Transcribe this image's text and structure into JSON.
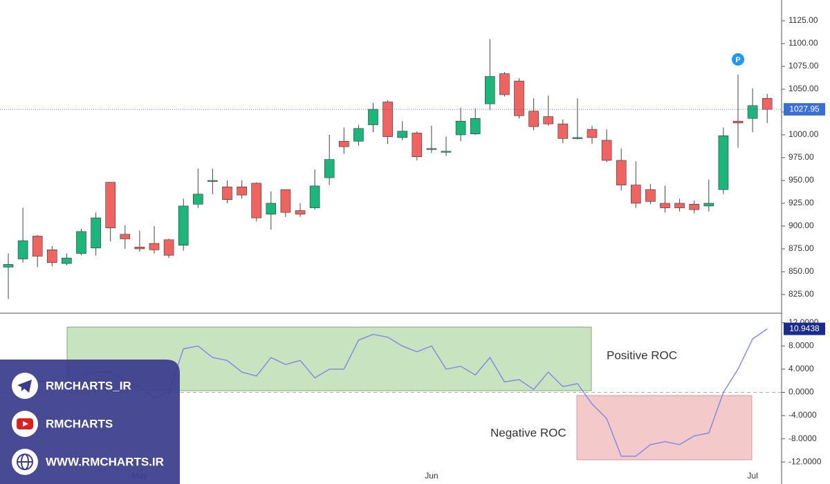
{
  "chart_data": [
    {
      "type": "candlestick",
      "categories": [
        null,
        null,
        null,
        null,
        null,
        null,
        null,
        null,
        null,
        "May",
        null,
        null,
        null,
        null,
        null,
        null,
        null,
        null,
        null,
        null,
        null,
        null,
        null,
        null,
        null,
        null,
        null,
        null,
        null,
        "Jun",
        null,
        null,
        null,
        null,
        null,
        null,
        null,
        null,
        null,
        null,
        null,
        null,
        null,
        null,
        null,
        null,
        null,
        null,
        null,
        null,
        null,
        "Jul",
        null
      ],
      "open": [
        855,
        864,
        889,
        874,
        859,
        870,
        876,
        948,
        891,
        877,
        881,
        885,
        879,
        924,
        950,
        943,
        943,
        947,
        913,
        940,
        917,
        920,
        953,
        993,
        993,
        1011,
        1036,
        997,
        1002,
        985,
        982,
        1000,
        1001,
        1034,
        1067,
        1059,
        1026,
        1020,
        1012,
        997,
        1006,
        994,
        972,
        945,
        940,
        925,
        925,
        924,
        922,
        940,
        1015,
        1018,
        1040
      ],
      "high": [
        870,
        920,
        890,
        878,
        870,
        897,
        915,
        948,
        901,
        895,
        900,
        886,
        930,
        963,
        963,
        950,
        950,
        948,
        938,
        940,
        925,
        962,
        1000,
        1008,
        1011,
        1035,
        1038,
        1015,
        1004,
        1010,
        998,
        1030,
        1029,
        1105,
        1069,
        1062,
        1040,
        1043,
        1017,
        1040,
        1010,
        1006,
        985,
        971,
        946,
        944,
        930,
        928,
        951,
        1008,
        1066,
        1051,
        1045
      ],
      "low": [
        820,
        860,
        855,
        856,
        857,
        868,
        868,
        883,
        875,
        872,
        870,
        865,
        873,
        920,
        935,
        925,
        930,
        905,
        896,
        910,
        910,
        918,
        945,
        979,
        988,
        1003,
        990,
        994,
        972,
        980,
        977,
        993,
        1000,
        1027,
        1042,
        1018,
        1005,
        1010,
        991,
        995,
        990,
        970,
        939,
        920,
        924,
        915,
        916,
        914,
        916,
        935,
        986,
        1003,
        1013
      ],
      "close": [
        858,
        884,
        867,
        860,
        865,
        894,
        909,
        898,
        886,
        875,
        874,
        868,
        922,
        935,
        950,
        929,
        934,
        909,
        925,
        915,
        913,
        944,
        973,
        987,
        1007,
        1028,
        998,
        1004,
        976,
        985,
        982,
        1015,
        1018,
        1064,
        1044,
        1021,
        1009,
        1012,
        996,
        997,
        997,
        972,
        945,
        925,
        927,
        920,
        920,
        918,
        925,
        999,
        1013,
        1032,
        1027.95
      ],
      "up_color": "#1cb57c",
      "down_color": "#ef6461",
      "marker": "P",
      "ylim": [
        804.5,
        1140.2
      ],
      "yticks": [
        {
          "value": 825,
          "label": "825.00"
        },
        {
          "value": 850,
          "label": "850.00"
        },
        {
          "value": 875,
          "label": "875.00"
        },
        {
          "value": 900,
          "label": "900.00"
        },
        {
          "value": 925,
          "label": "925.00"
        },
        {
          "value": 950,
          "label": "950.00"
        },
        {
          "value": 975,
          "label": "975.00"
        },
        {
          "value": 1000,
          "label": "1000.00"
        },
        {
          "value": 1025,
          "label": "1025.00"
        },
        {
          "value": 1050,
          "label": "1050.00"
        },
        {
          "value": 1075,
          "label": "1075.00"
        },
        {
          "value": 1100,
          "label": "1100.00"
        },
        {
          "value": 1125,
          "label": "1125.00"
        }
      ]
    },
    {
      "type": "line",
      "series": [
        {
          "name": "ROC",
          "color": "#7f86e6",
          "values": [
            0.5,
            1,
            2,
            1.5,
            1,
            3,
            3.5,
            3.5,
            2,
            1,
            -1,
            0,
            7.5,
            8,
            6,
            5.5,
            3.5,
            2.8,
            6,
            4.8,
            5.5,
            2.5,
            4,
            4,
            9,
            10,
            9.5,
            8,
            7,
            8,
            4,
            4.5,
            3,
            6,
            1.8,
            2.2,
            0.5,
            3.5,
            1,
            1.5,
            -2,
            -4.5,
            -11,
            -11,
            -9,
            -8.5,
            -9,
            -7.5,
            -7,
            0,
            4,
            9.2,
            10.9438
          ]
        }
      ],
      "annotations": [
        "Positive ROC",
        "Negative ROC"
      ],
      "ylim": [
        -14,
        13.4
      ],
      "yticks": [
        {
          "value": 12,
          "label": "12.0000"
        },
        {
          "value": 8,
          "label": "8.0000"
        },
        {
          "value": 4,
          "label": "4.0000"
        },
        {
          "value": 0,
          "label": "0.0000"
        },
        {
          "value": -4,
          "label": "-4.0000"
        },
        {
          "value": -8,
          "label": "-8.0000"
        },
        {
          "value": -12,
          "label": "-12.0000"
        }
      ]
    }
  ],
  "watermark": {
    "telegram": "RMCHARTS_IR",
    "youtube": "RMCHARTS",
    "website": "WWW.RMCHARTS.IR"
  }
}
